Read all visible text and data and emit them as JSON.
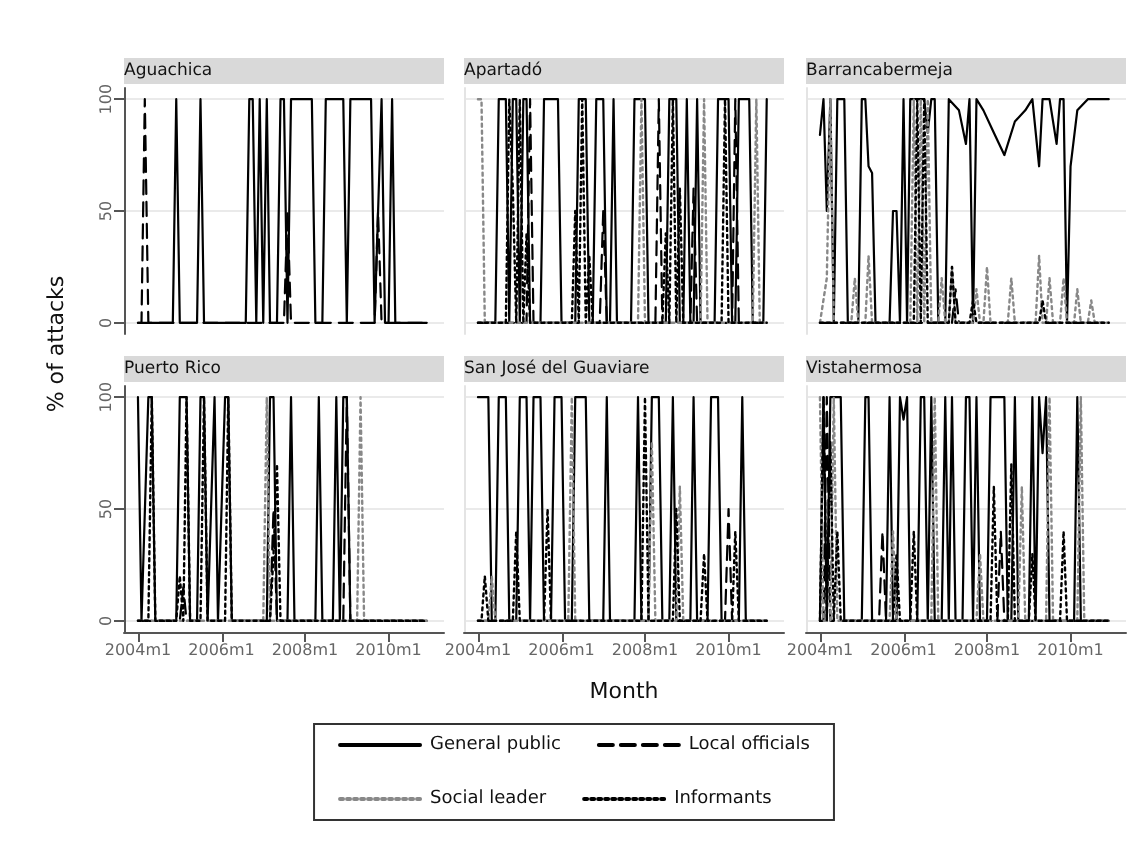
{
  "chart_data": [
    {
      "type": "line",
      "title": "Aguachica",
      "ylabel": "% of attacks",
      "xlim": [
        "2003-09",
        "2011-05"
      ],
      "xticks": [
        {
          "value": "2004-01",
          "label": "2004m1"
        },
        {
          "value": "2006-01",
          "label": "2006m1"
        },
        {
          "value": "2008-01",
          "label": "2008m1"
        },
        {
          "value": "2010-01",
          "label": "2010m1"
        }
      ],
      "ylim": [
        -5,
        105
      ],
      "yticks": [
        0,
        50,
        100
      ],
      "grid": "y",
      "legend": "bottom",
      "marker": "none",
      "tick_labels": "y",
      "series": [
        {
          "name": "General public",
          "color": "#000000",
          "line_style": "solid",
          "x": [
            "2004-01",
            "2004-11",
            "2004-12",
            "2005-01",
            "2005-06",
            "2005-07",
            "2005-08",
            "2006-08",
            "2006-09",
            "2006-10",
            "2006-11",
            "2006-12",
            "2007-01",
            "2007-02",
            "2007-03",
            "2007-05",
            "2007-06",
            "2007-07",
            "2007-08",
            "2007-09",
            "2008-03",
            "2008-04",
            "2008-06",
            "2008-07",
            "2008-12",
            "2009-01",
            "2009-02",
            "2009-08",
            "2009-09",
            "2009-11",
            "2009-12",
            "2010-01",
            "2010-02",
            "2010-03",
            "2010-12"
          ],
          "values": [
            0,
            0,
            100,
            0,
            0,
            100,
            0,
            0,
            100,
            100,
            0,
            100,
            0,
            100,
            0,
            0,
            100,
            100,
            0,
            100,
            100,
            0,
            0,
            100,
            100,
            0,
            100,
            100,
            0,
            100,
            0,
            0,
            100,
            0,
            0
          ]
        },
        {
          "name": "Local officials",
          "color": "#000000",
          "line_style": "dashed",
          "x": [
            "2004-01",
            "2004-02",
            "2004-03",
            "2004-04",
            "2007-07",
            "2007-08",
            "2007-09",
            "2009-09",
            "2009-10",
            "2009-11",
            "2010-12"
          ],
          "values": [
            0,
            0,
            100,
            0,
            0,
            50,
            0,
            0,
            50,
            0,
            0
          ]
        }
      ]
    },
    {
      "type": "line",
      "title": "Apartadó",
      "xlim": [
        "2003-09",
        "2011-05"
      ],
      "xticks": [
        {
          "value": "2004-01",
          "label": "2004m1"
        },
        {
          "value": "2006-01",
          "label": "2006m1"
        },
        {
          "value": "2008-01",
          "label": "2008m1"
        },
        {
          "value": "2010-01",
          "label": "2010m1"
        }
      ],
      "ylim": [
        -5,
        105
      ],
      "yticks": [
        0,
        50,
        100
      ],
      "grid": "y",
      "legend": "bottom",
      "marker": "none",
      "tick_labels": false,
      "series": [
        {
          "name": "General public",
          "color": "#000000",
          "line_style": "solid",
          "x": [
            "2004-01",
            "2004-06",
            "2004-07",
            "2004-09",
            "2004-10",
            "2004-11",
            "2004-12",
            "2005-01",
            "2005-02",
            "2005-03",
            "2005-04",
            "2005-07",
            "2005-08",
            "2005-12",
            "2006-01",
            "2006-05",
            "2006-06",
            "2006-08",
            "2006-09",
            "2006-10",
            "2006-11",
            "2007-01",
            "2007-02",
            "2007-03",
            "2007-04",
            "2007-05",
            "2007-09",
            "2007-10",
            "2008-01",
            "2008-02",
            "2008-07",
            "2008-08",
            "2008-10",
            "2008-11",
            "2008-12",
            "2009-01",
            "2009-02",
            "2009-03",
            "2009-04",
            "2009-05",
            "2009-09",
            "2009-10",
            "2010-01",
            "2010-02",
            "2010-03",
            "2010-04",
            "2010-07",
            "2010-08",
            "2010-11",
            "2010-12"
          ],
          "values": [
            0,
            0,
            100,
            100,
            0,
            100,
            100,
            0,
            100,
            100,
            0,
            0,
            100,
            100,
            0,
            0,
            100,
            100,
            0,
            0,
            100,
            100,
            0,
            0,
            100,
            0,
            0,
            100,
            100,
            0,
            0,
            100,
            100,
            0,
            0,
            100,
            0,
            0,
            100,
            0,
            0,
            100,
            100,
            0,
            0,
            100,
            100,
            0,
            0,
            100
          ]
        },
        {
          "name": "Local officials",
          "color": "#000000",
          "line_style": "dashed",
          "x": [
            "2004-01",
            "2005-03",
            "2005-04",
            "2005-05",
            "2006-12",
            "2007-01",
            "2007-02",
            "2008-04",
            "2008-05",
            "2008-06",
            "2009-02",
            "2009-03",
            "2009-04",
            "2010-02",
            "2010-03",
            "2010-04",
            "2010-12"
          ],
          "values": [
            0,
            0,
            100,
            0,
            0,
            50,
            0,
            0,
            100,
            0,
            0,
            60,
            0,
            0,
            100,
            0,
            0
          ]
        },
        {
          "name": "Social leader",
          "color": "#888888",
          "line_style": "dotted",
          "x": [
            "2004-01",
            "2004-02",
            "2004-03",
            "2007-11",
            "2007-12",
            "2008-01",
            "2009-05",
            "2009-06",
            "2009-07",
            "2010-08",
            "2010-09",
            "2010-10",
            "2010-12"
          ],
          "values": [
            100,
            100,
            0,
            0,
            100,
            0,
            0,
            100,
            0,
            0,
            100,
            0,
            0
          ]
        },
        {
          "name": "Informants",
          "color": "#000000",
          "line_style": "dotted",
          "x": [
            "2004-01",
            "2004-09",
            "2004-10",
            "2004-11",
            "2004-12",
            "2005-01",
            "2005-02",
            "2005-03",
            "2005-04",
            "2006-04",
            "2006-05",
            "2006-06",
            "2006-07",
            "2006-08",
            "2006-09",
            "2006-10",
            "2008-06",
            "2008-07",
            "2008-08",
            "2008-09",
            "2008-10",
            "2008-11",
            "2008-12",
            "2009-11",
            "2009-12",
            "2010-01",
            "2010-12"
          ],
          "values": [
            0,
            0,
            100,
            60,
            0,
            100,
            0,
            40,
            0,
            0,
            50,
            0,
            100,
            0,
            30,
            0,
            0,
            40,
            0,
            100,
            0,
            60,
            0,
            0,
            100,
            0,
            0
          ]
        }
      ]
    },
    {
      "type": "line",
      "title": "Barrancabermeja",
      "xlim": [
        "2003-09",
        "2011-05"
      ],
      "xticks": [
        {
          "value": "2004-01",
          "label": "2004m1"
        },
        {
          "value": "2006-01",
          "label": "2006m1"
        },
        {
          "value": "2008-01",
          "label": "2008m1"
        },
        {
          "value": "2010-01",
          "label": "2010m1"
        }
      ],
      "ylim": [
        -5,
        105
      ],
      "yticks": [
        0,
        50,
        100
      ],
      "grid": "y",
      "legend": "bottom",
      "marker": "none",
      "tick_labels": false,
      "series": [
        {
          "name": "General public",
          "color": "#000000",
          "line_style": "solid",
          "x": [
            "2004-01",
            "2004-02",
            "2004-03",
            "2004-04",
            "2004-05",
            "2004-06",
            "2004-08",
            "2004-09",
            "2004-12",
            "2005-01",
            "2005-02",
            "2005-03",
            "2005-04",
            "2005-05",
            "2005-09",
            "2005-10",
            "2005-11",
            "2005-12",
            "2006-01",
            "2006-02",
            "2006-03",
            "2006-07",
            "2006-08",
            "2006-09",
            "2006-10",
            "2006-11",
            "2007-01",
            "2007-02",
            "2007-05",
            "2007-07",
            "2007-08",
            "2007-09",
            "2007-10",
            "2007-12",
            "2008-03",
            "2008-06",
            "2008-09",
            "2008-12",
            "2009-02",
            "2009-04",
            "2009-05",
            "2009-07",
            "2009-09",
            "2009-10",
            "2009-11",
            "2009-12",
            "2010-01",
            "2010-03",
            "2010-06",
            "2010-12"
          ],
          "values": [
            84,
            100,
            50,
            100,
            0,
            100,
            100,
            0,
            0,
            100,
            100,
            70,
            67,
            0,
            0,
            50,
            50,
            0,
            100,
            0,
            100,
            100,
            85,
            100,
            100,
            0,
            0,
            100,
            95,
            80,
            100,
            0,
            100,
            95,
            85,
            75,
            90,
            95,
            100,
            70,
            100,
            100,
            80,
            100,
            100,
            0,
            70,
            95,
            100,
            100
          ]
        },
        {
          "name": "Local officials",
          "color": "#000000",
          "line_style": "dashed",
          "x": [
            "2004-01",
            "2007-03",
            "2007-04",
            "2007-05",
            "2010-12"
          ],
          "values": [
            0,
            0,
            15,
            0,
            0
          ]
        },
        {
          "name": "Social leader",
          "color": "#888888",
          "line_style": "dotted",
          "x": [
            "2004-01",
            "2004-03",
            "2004-04",
            "2004-05",
            "2004-10",
            "2004-11",
            "2004-12",
            "2005-02",
            "2005-03",
            "2005-04",
            "2006-03",
            "2006-04",
            "2006-05",
            "2006-06",
            "2006-07",
            "2006-08",
            "2006-09",
            "2006-11",
            "2006-12",
            "2007-01",
            "2007-02",
            "2007-03",
            "2007-04",
            "2007-09",
            "2007-10",
            "2007-11",
            "2007-12",
            "2008-01",
            "2008-02",
            "2008-07",
            "2008-08",
            "2008-09",
            "2009-03",
            "2009-04",
            "2009-05",
            "2009-06",
            "2009-07",
            "2009-08",
            "2009-10",
            "2009-11",
            "2009-12",
            "2010-02",
            "2010-03",
            "2010-04",
            "2010-06",
            "2010-07",
            "2010-08",
            "2010-12"
          ],
          "values": [
            0,
            20,
            100,
            0,
            0,
            20,
            0,
            0,
            30,
            0,
            0,
            100,
            0,
            100,
            0,
            100,
            0,
            0,
            20,
            0,
            0,
            25,
            0,
            0,
            15,
            0,
            0,
            25,
            0,
            0,
            20,
            0,
            0,
            30,
            0,
            0,
            20,
            0,
            0,
            20,
            0,
            0,
            15,
            0,
            0,
            10,
            0,
            0
          ]
        },
        {
          "name": "Informants",
          "color": "#000000",
          "line_style": "dotted",
          "x": [
            "2004-01",
            "2006-04",
            "2006-05",
            "2006-06",
            "2006-07",
            "2006-08",
            "2007-02",
            "2007-03",
            "2007-04",
            "2007-08",
            "2007-09",
            "2007-10",
            "2009-04",
            "2009-05",
            "2009-06",
            "2010-12"
          ],
          "values": [
            0,
            0,
            100,
            0,
            100,
            0,
            0,
            25,
            0,
            0,
            10,
            0,
            0,
            10,
            0,
            0
          ]
        }
      ]
    },
    {
      "type": "line",
      "title": "Puerto Rico",
      "xlim": [
        "2003-09",
        "2011-05"
      ],
      "xticks": [
        {
          "value": "2004-01",
          "label": "2004m1"
        },
        {
          "value": "2006-01",
          "label": "2006m1"
        },
        {
          "value": "2008-01",
          "label": "2008m1"
        },
        {
          "value": "2010-01",
          "label": "2010m1"
        }
      ],
      "ylim": [
        -5,
        105
      ],
      "yticks": [
        0,
        50,
        100
      ],
      "grid": "y",
      "legend": "bottom",
      "marker": "none",
      "series": [
        {
          "name": "General public",
          "color": "#000000",
          "line_style": "solid",
          "x": [
            "2004-01",
            "2004-02",
            "2004-04",
            "2004-05",
            "2004-06",
            "2004-12",
            "2005-01",
            "2005-03",
            "2005-04",
            "2005-06",
            "2005-07",
            "2005-08",
            "2005-09",
            "2005-11",
            "2005-12",
            "2006-02",
            "2006-03",
            "2006-04",
            "2007-02",
            "2007-03",
            "2007-04",
            "2007-05",
            "2007-08",
            "2007-09",
            "2007-10",
            "2008-04",
            "2008-05",
            "2008-06",
            "2008-09",
            "2008-10",
            "2008-11",
            "2008-12",
            "2009-01",
            "2009-02",
            "2010-12"
          ],
          "values": [
            100,
            0,
            100,
            100,
            0,
            0,
            100,
            100,
            0,
            0,
            100,
            100,
            0,
            100,
            0,
            100,
            100,
            0,
            0,
            100,
            100,
            0,
            0,
            100,
            0,
            0,
            100,
            0,
            0,
            100,
            0,
            100,
            100,
            0,
            0
          ]
        },
        {
          "name": "Local officials",
          "color": "#000000",
          "line_style": "dashed",
          "x": [
            "2004-01",
            "2005-01",
            "2005-02",
            "2005-03",
            "2007-03",
            "2007-04",
            "2007-05",
            "2008-12",
            "2009-01",
            "2009-02",
            "2010-12"
          ],
          "values": [
            0,
            0,
            15,
            0,
            0,
            50,
            0,
            0,
            100,
            0,
            0
          ]
        },
        {
          "name": "Social leader",
          "color": "#888888",
          "line_style": "dotted",
          "x": [
            "2004-01",
            "2007-01",
            "2007-02",
            "2007-03",
            "2009-04",
            "2009-05",
            "2009-06",
            "2010-12"
          ],
          "values": [
            0,
            0,
            100,
            0,
            0,
            100,
            0,
            0
          ]
        },
        {
          "name": "Informants",
          "color": "#000000",
          "line_style": "dotted",
          "x": [
            "2004-01",
            "2004-04",
            "2004-05",
            "2004-06",
            "2004-12",
            "2005-01",
            "2005-02",
            "2005-03",
            "2005-04",
            "2005-07",
            "2005-08",
            "2005-09",
            "2006-02",
            "2006-03",
            "2006-04",
            "2007-03",
            "2007-04",
            "2007-05",
            "2007-06",
            "2010-12"
          ],
          "values": [
            0,
            0,
            100,
            0,
            0,
            20,
            0,
            100,
            0,
            0,
            100,
            0,
            0,
            100,
            0,
            0,
            30,
            70,
            0,
            0
          ]
        }
      ]
    },
    {
      "type": "line",
      "title": "San José del Guaviare",
      "xlabel": "Month",
      "xlim": [
        "2003-09",
        "2011-05"
      ],
      "xticks": [
        {
          "value": "2004-01",
          "label": "2004m1"
        },
        {
          "value": "2006-01",
          "label": "2006m1"
        },
        {
          "value": "2008-01",
          "label": "2008m1"
        },
        {
          "value": "2010-01",
          "label": "2010m1"
        }
      ],
      "ylim": [
        -5,
        105
      ],
      "yticks": [
        0,
        50,
        100
      ],
      "grid": "y",
      "legend": "bottom",
      "marker": "none",
      "tick_labels": "x",
      "series": [
        {
          "name": "General public",
          "color": "#000000",
          "line_style": "solid",
          "x": [
            "2004-01",
            "2004-04",
            "2004-05",
            "2004-06",
            "2004-07",
            "2004-09",
            "2004-10",
            "2004-12",
            "2005-01",
            "2005-03",
            "2005-04",
            "2005-05",
            "2005-07",
            "2005-08",
            "2005-10",
            "2005-11",
            "2006-01",
            "2006-02",
            "2006-04",
            "2006-05",
            "2006-08",
            "2006-09",
            "2007-01",
            "2007-02",
            "2007-03",
            "2007-10",
            "2007-11",
            "2007-12",
            "2008-02",
            "2008-03",
            "2008-05",
            "2008-06",
            "2008-08",
            "2008-09",
            "2008-10",
            "2009-02",
            "2009-03",
            "2009-04",
            "2009-07",
            "2009-08",
            "2009-10",
            "2009-11",
            "2010-04",
            "2010-05",
            "2010-06",
            "2010-12"
          ],
          "values": [
            100,
            100,
            0,
            0,
            100,
            100,
            0,
            0,
            100,
            100,
            0,
            100,
            100,
            0,
            0,
            100,
            100,
            0,
            0,
            100,
            100,
            0,
            0,
            100,
            0,
            0,
            100,
            0,
            0,
            100,
            100,
            0,
            0,
            100,
            0,
            0,
            100,
            0,
            0,
            100,
            100,
            0,
            0,
            100,
            0,
            0
          ]
        },
        {
          "name": "Local officials",
          "color": "#000000",
          "line_style": "dashed",
          "x": [
            "2004-01",
            "2009-12",
            "2010-01",
            "2010-02",
            "2010-12"
          ],
          "values": [
            0,
            0,
            50,
            0,
            0
          ]
        },
        {
          "name": "Social leader",
          "color": "#888888",
          "line_style": "dotted",
          "x": [
            "2004-01",
            "2004-04",
            "2004-05",
            "2004-06",
            "2006-03",
            "2006-04",
            "2006-05",
            "2008-02",
            "2008-03",
            "2008-04",
            "2008-10",
            "2008-11",
            "2008-12",
            "2010-12"
          ],
          "values": [
            0,
            0,
            20,
            0,
            0,
            100,
            0,
            0,
            80,
            0,
            0,
            60,
            0,
            0
          ]
        },
        {
          "name": "Informants",
          "color": "#000000",
          "line_style": "dotted",
          "x": [
            "2004-01",
            "2004-02",
            "2004-03",
            "2004-04",
            "2004-11",
            "2004-12",
            "2005-01",
            "2005-08",
            "2005-09",
            "2005-10",
            "2007-12",
            "2008-01",
            "2008-02",
            "2008-09",
            "2008-10",
            "2008-11",
            "2009-05",
            "2009-06",
            "2009-07",
            "2010-02",
            "2010-03",
            "2010-04",
            "2010-12"
          ],
          "values": [
            0,
            0,
            20,
            0,
            0,
            40,
            0,
            0,
            50,
            0,
            0,
            100,
            0,
            0,
            50,
            0,
            0,
            30,
            0,
            0,
            40,
            0,
            0
          ]
        }
      ]
    },
    {
      "type": "line",
      "title": "Vistahermosa",
      "xlim": [
        "2003-09",
        "2011-05"
      ],
      "xticks": [
        {
          "value": "2004-01",
          "label": "2004m1"
        },
        {
          "value": "2006-01",
          "label": "2006m1"
        },
        {
          "value": "2008-01",
          "label": "2008m1"
        },
        {
          "value": "2010-01",
          "label": "2010m1"
        }
      ],
      "ylim": [
        -5,
        105
      ],
      "yticks": [
        0,
        50,
        100
      ],
      "grid": "y",
      "legend": "bottom",
      "marker": "none",
      "tick_labels": "x",
      "series": [
        {
          "name": "General public",
          "color": "#000000",
          "line_style": "solid",
          "x": [
            "2004-01",
            "2004-02",
            "2004-03",
            "2004-04",
            "2004-07",
            "2004-08",
            "2005-01",
            "2005-02",
            "2005-03",
            "2005-04",
            "2005-08",
            "2005-09",
            "2005-10",
            "2005-11",
            "2005-12",
            "2006-01",
            "2006-02",
            "2006-03",
            "2006-05",
            "2006-06",
            "2006-07",
            "2006-08",
            "2006-09",
            "2006-10",
            "2006-12",
            "2007-01",
            "2007-02",
            "2007-03",
            "2007-04",
            "2007-06",
            "2007-07",
            "2007-08",
            "2007-09",
            "2007-10",
            "2007-11",
            "2008-01",
            "2008-02",
            "2008-06",
            "2008-07",
            "2008-08",
            "2008-09",
            "2008-10",
            "2009-01",
            "2009-02",
            "2009-03",
            "2009-04",
            "2009-05",
            "2009-06",
            "2009-07",
            "2010-02",
            "2010-03",
            "2010-04",
            "2010-12"
          ],
          "values": [
            0,
            100,
            0,
            100,
            100,
            0,
            0,
            100,
            100,
            0,
            0,
            100,
            0,
            0,
            100,
            90,
            100,
            0,
            0,
            100,
            100,
            0,
            100,
            0,
            0,
            100,
            0,
            100,
            0,
            0,
            100,
            100,
            0,
            100,
            0,
            0,
            100,
            100,
            0,
            0,
            100,
            0,
            0,
            100,
            0,
            100,
            75,
            100,
            0,
            0,
            100,
            0,
            0
          ]
        },
        {
          "name": "Local officials",
          "color": "#000000",
          "line_style": "dashed",
          "x": [
            "2004-01",
            "2004-02",
            "2004-03",
            "2004-04",
            "2005-06",
            "2005-07",
            "2005-08",
            "2008-04",
            "2008-05",
            "2008-06",
            "2010-12"
          ],
          "values": [
            0,
            0,
            100,
            0,
            0,
            40,
            0,
            0,
            40,
            0,
            0
          ]
        },
        {
          "name": "Social leader",
          "color": "#888888",
          "line_style": "dotted",
          "x": [
            "2004-01",
            "2004-02",
            "2004-04",
            "2004-05",
            "2004-06",
            "2005-09",
            "2005-10",
            "2005-11",
            "2006-09",
            "2006-10",
            "2006-11",
            "2007-10",
            "2007-11",
            "2007-12",
            "2008-10",
            "2008-11",
            "2008-12",
            "2009-06",
            "2009-07",
            "2009-08",
            "2010-03",
            "2010-04",
            "2010-05",
            "2010-12"
          ],
          "values": [
            100,
            0,
            0,
            100,
            0,
            0,
            40,
            0,
            0,
            100,
            0,
            0,
            30,
            0,
            0,
            60,
            0,
            0,
            100,
            0,
            0,
            100,
            0,
            0
          ]
        },
        {
          "name": "Informants",
          "color": "#000000",
          "line_style": "dotted",
          "x": [
            "2004-01",
            "2004-02",
            "2004-03",
            "2004-04",
            "2004-05",
            "2004-06",
            "2004-07",
            "2005-10",
            "2005-11",
            "2005-12",
            "2006-03",
            "2006-04",
            "2006-05",
            "2008-02",
            "2008-03",
            "2008-04",
            "2008-07",
            "2008-08",
            "2008-09",
            "2009-01",
            "2009-02",
            "2009-03",
            "2009-10",
            "2009-11",
            "2009-12",
            "2010-12"
          ],
          "values": [
            0,
            100,
            0,
            80,
            0,
            40,
            0,
            0,
            30,
            0,
            0,
            40,
            0,
            0,
            60,
            0,
            0,
            70,
            0,
            0,
            30,
            0,
            0,
            40,
            0,
            0
          ]
        }
      ]
    }
  ]
}
